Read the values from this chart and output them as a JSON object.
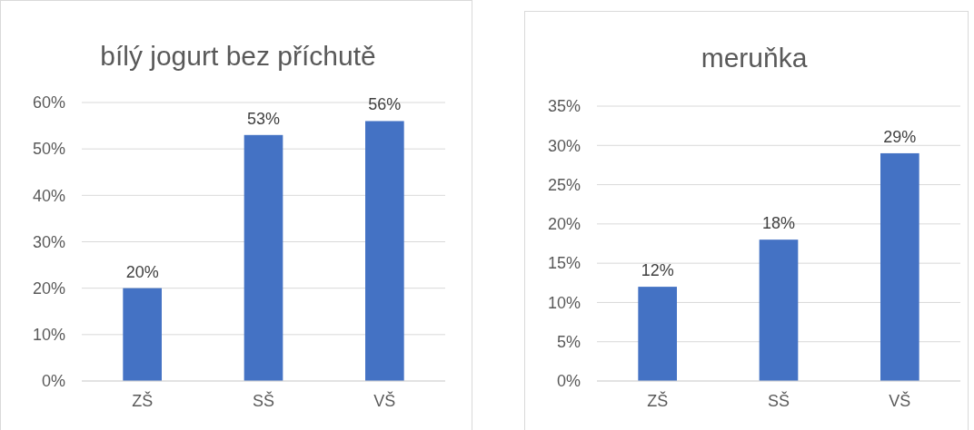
{
  "chart_data": [
    {
      "type": "bar",
      "title": "bílý jogurt bez příchutě",
      "categories": [
        "ZŠ",
        "SŠ",
        "VŠ"
      ],
      "values": [
        20,
        53,
        56
      ],
      "color": "#4472c4",
      "value_labels": [
        "20%",
        "53%",
        "56%"
      ],
      "ylim": [
        0,
        60
      ],
      "yticks": [
        {
          "value": 0,
          "label": "0%"
        },
        {
          "value": 10,
          "label": "10%"
        },
        {
          "value": 20,
          "label": "20%"
        },
        {
          "value": 30,
          "label": "30%"
        },
        {
          "value": 40,
          "label": "40%"
        },
        {
          "value": 50,
          "label": "50%"
        },
        {
          "value": 60,
          "label": "60%"
        }
      ],
      "grid": "y"
    },
    {
      "type": "bar",
      "title": "meruňka",
      "categories": [
        "ZŠ",
        "SŠ",
        "VŠ"
      ],
      "values": [
        12,
        18,
        29
      ],
      "color": "#4472c4",
      "value_labels": [
        "12%",
        "18%",
        "29%"
      ],
      "ylim": [
        0,
        35
      ],
      "yticks": [
        {
          "value": 0,
          "label": "0%"
        },
        {
          "value": 5,
          "label": "5%"
        },
        {
          "value": 10,
          "label": "10%"
        },
        {
          "value": 15,
          "label": "15%"
        },
        {
          "value": 20,
          "label": "20%"
        },
        {
          "value": 25,
          "label": "25%"
        },
        {
          "value": 30,
          "label": "30%"
        },
        {
          "value": 35,
          "label": "35%"
        }
      ],
      "grid": "y"
    }
  ]
}
